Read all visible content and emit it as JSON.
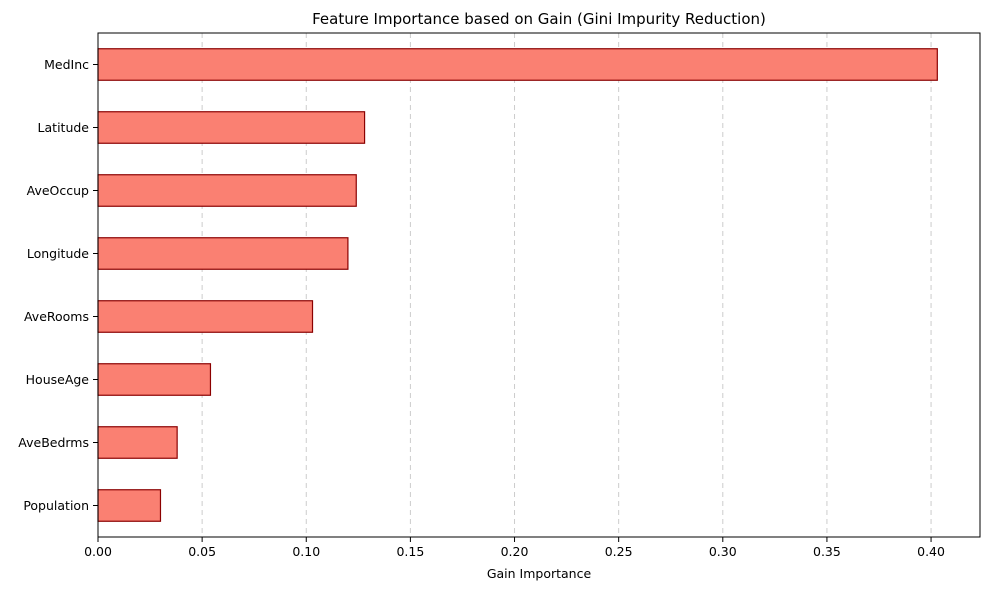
{
  "chart_data": {
    "type": "bar",
    "orientation": "horizontal",
    "title": "Feature Importance based on Gain (Gini Impurity Reduction)",
    "xlabel": "Gain Importance",
    "ylabel": "",
    "categories": [
      "MedInc",
      "Latitude",
      "AveOccup",
      "Longitude",
      "AveRooms",
      "HouseAge",
      "AveBedrms",
      "Population"
    ],
    "values": [
      0.403,
      0.128,
      0.124,
      0.12,
      0.103,
      0.054,
      0.038,
      0.03
    ],
    "xlim": [
      0.0,
      0.4235
    ],
    "xticks": [
      "0.00",
      "0.05",
      "0.10",
      "0.15",
      "0.20",
      "0.25",
      "0.30",
      "0.35",
      "0.40"
    ],
    "xtick_values": [
      0.0,
      0.05,
      0.1,
      0.15,
      0.2,
      0.25,
      0.3,
      0.35,
      0.4
    ],
    "grid": "x-dashed",
    "legend": "none",
    "colors": {
      "bar_fill": "#fa8072",
      "bar_edge": "#8b0000",
      "grid": "#cccccc"
    }
  }
}
